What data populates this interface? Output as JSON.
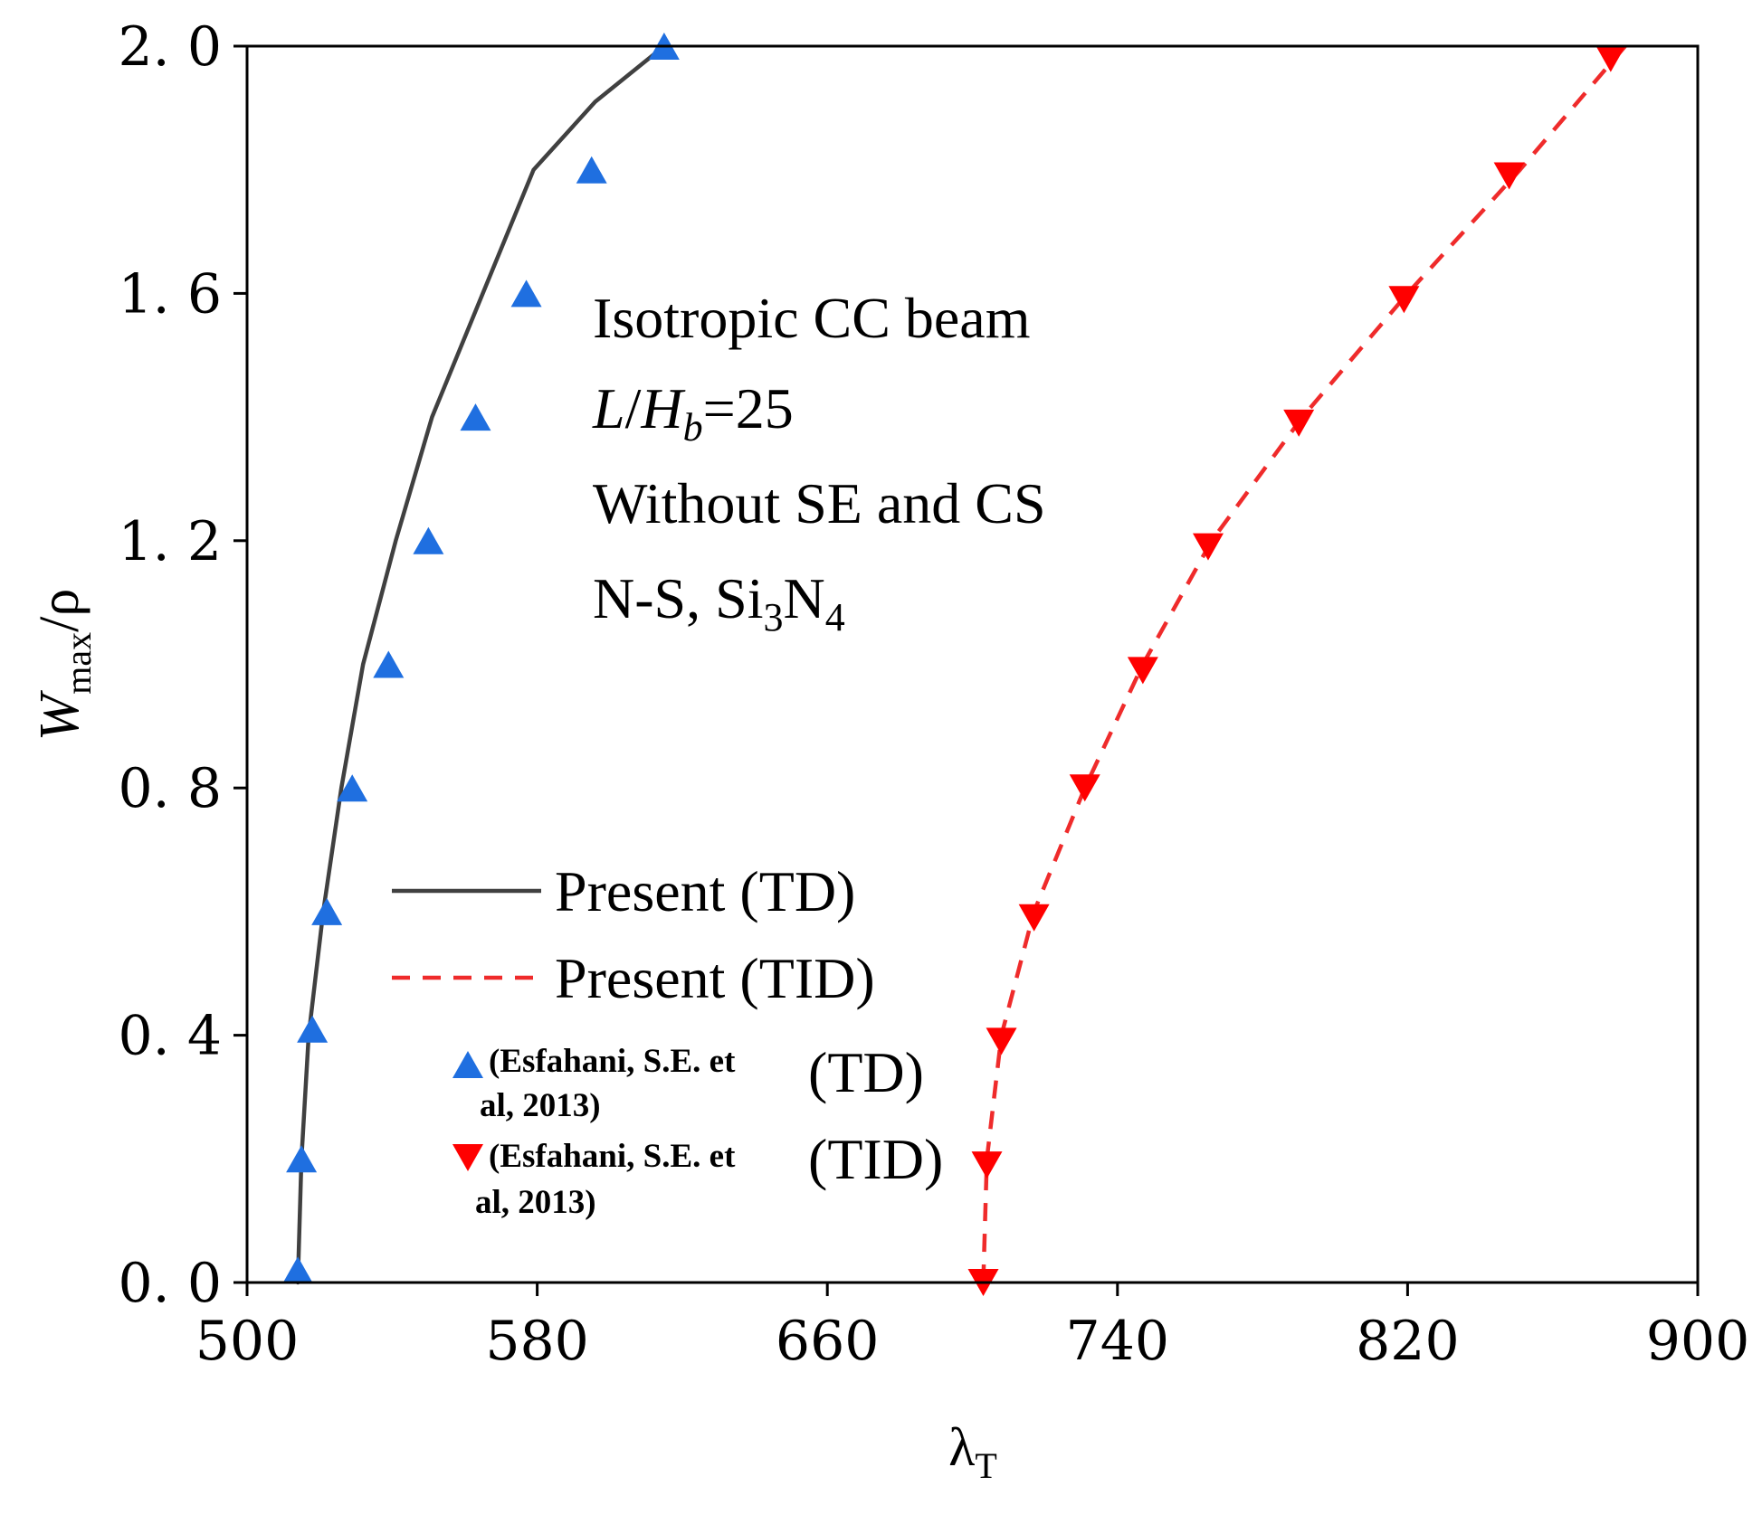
{
  "chart_data": {
    "type": "line",
    "xlabel": "λ",
    "xlabel_sub": "T",
    "ylabel": "W",
    "ylabel_sub": "max",
    "ylabel_tail": "/ρ",
    "xlim": [
      500,
      900
    ],
    "ylim": [
      0.0,
      2.0
    ],
    "xticks": [
      500,
      580,
      660,
      740,
      820,
      900
    ],
    "xtick_labels": [
      "500",
      "580",
      "660",
      "740",
      "820",
      "900"
    ],
    "yticks": [
      0.0,
      0.4,
      0.8,
      1.2,
      1.6,
      2.0
    ],
    "ytick_labels": [
      "0. 0",
      "0. 4",
      "0. 8",
      "1. 2",
      "1. 6",
      "2. 0"
    ],
    "grid": false,
    "legend_position": "lower-left",
    "annotations": [
      {
        "id": "a1",
        "segments": [
          {
            "text": "Isotropic CC beam"
          }
        ]
      },
      {
        "id": "a2",
        "segments": [
          {
            "text": "L",
            "style": "italic"
          },
          {
            "text": "/"
          },
          {
            "text": "H",
            "style": "italic"
          },
          {
            "text": "b",
            "style": "italic-sub"
          },
          {
            "text": "=25"
          }
        ]
      },
      {
        "id": "a3",
        "segments": [
          {
            "text": "Without SE and CS"
          }
        ]
      },
      {
        "id": "a4",
        "segments": [
          {
            "text": "N-S, Si"
          },
          {
            "text": "3",
            "style": "sub"
          },
          {
            "text": "N"
          },
          {
            "text": "4",
            "style": "sub"
          }
        ]
      }
    ],
    "series": [
      {
        "name": "Present (TD)",
        "kind": "line",
        "color": "#404040",
        "dash": "solid",
        "x": [
          514,
          515,
          517,
          521,
          526,
          532,
          541,
          551,
          565,
          579,
          596,
          615
        ],
        "y": [
          0.0,
          0.2,
          0.4,
          0.6,
          0.8,
          1.0,
          1.2,
          1.4,
          1.6,
          1.8,
          1.91,
          2.0
        ]
      },
      {
        "name": "Present (TID)",
        "kind": "line",
        "color": "#ef2b2b",
        "dash": "dashed",
        "x": [
          703,
          704,
          708,
          717,
          731,
          747,
          766,
          791,
          820,
          851,
          880
        ],
        "y": [
          0.0,
          0.2,
          0.4,
          0.6,
          0.8,
          1.0,
          1.2,
          1.4,
          1.6,
          1.8,
          2.0
        ]
      },
      {
        "name": "(Esfahani, S.E. et al, 2013)",
        "legend_tag": "(TD)",
        "kind": "marker",
        "marker": "triangle-up",
        "color": "#1f6fe0",
        "x": [
          514,
          515,
          518,
          522,
          529,
          539,
          550,
          563,
          577,
          595,
          615
        ],
        "y": [
          0.02,
          0.2,
          0.41,
          0.6,
          0.8,
          1.0,
          1.2,
          1.4,
          1.6,
          1.8,
          2.0
        ]
      },
      {
        "name": "(Esfahani, S.E. et al, 2013)",
        "legend_tag": "(TID)",
        "kind": "marker",
        "marker": "triangle-down",
        "color": "#ff0000",
        "x": [
          703,
          704,
          708,
          717,
          731,
          747,
          765,
          790,
          819,
          848,
          876
        ],
        "y": [
          0.0,
          0.19,
          0.39,
          0.59,
          0.8,
          0.99,
          1.19,
          1.39,
          1.59,
          1.79,
          1.98
        ]
      }
    ],
    "legend_ref_line1": "(Esfahani, S.E. et",
    "legend_ref_line2": "al, 2013)"
  }
}
